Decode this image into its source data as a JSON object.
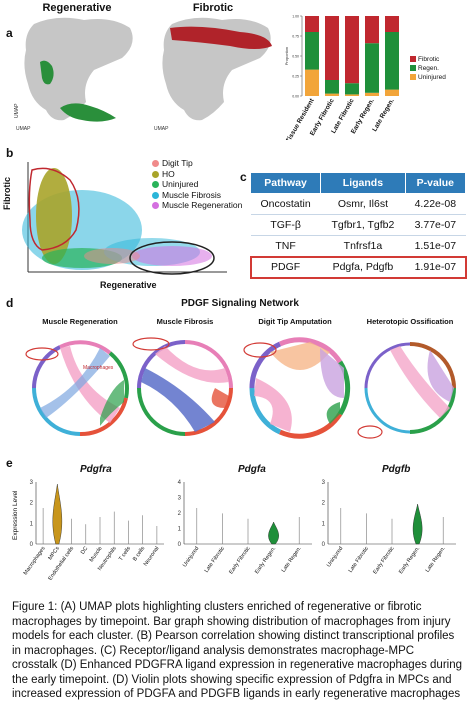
{
  "panel_labels": {
    "a": "a",
    "b": "b",
    "c": "c",
    "d": "d",
    "e": "e"
  },
  "a": {
    "umap1_title": "Regenerative",
    "umap2_title": "Fibrotic",
    "umap_x": "UMAP",
    "umap_y": "UMAP",
    "bar_ylabel": "Proportion",
    "legend": [
      "Fibrotic",
      "Regen.",
      "Uninjured"
    ],
    "colors": {
      "fibrotic": "#c0282f",
      "regen": "#1f8f3a",
      "uninjured": "#f2a53a",
      "gray": "#c8c8c8"
    }
  },
  "chart_data": [
    {
      "type": "bar",
      "stacked": true,
      "categories": [
        "Tissue Resident",
        "Early Fibrotic",
        "Late Fibrotic",
        "Early Regen.",
        "Late Regen."
      ],
      "series": [
        {
          "name": "Uninjured",
          "values": [
            0.33,
            0.03,
            0.02,
            0.04,
            0.08
          ]
        },
        {
          "name": "Regen.",
          "values": [
            0.47,
            0.17,
            0.14,
            0.62,
            0.72
          ]
        },
        {
          "name": "Fibrotic",
          "values": [
            0.2,
            0.8,
            0.84,
            0.34,
            0.2
          ]
        }
      ],
      "ylim": [
        0,
        1
      ],
      "legend_position": "right"
    }
  ],
  "b": {
    "ylabel": "Fibrotic",
    "xlabel": "Regenerative",
    "legend": [
      {
        "label": "Digit Tip",
        "color": "#f08a8a"
      },
      {
        "label": "HO",
        "color": "#a8a42a"
      },
      {
        "label": "Uninjured",
        "color": "#29b35a"
      },
      {
        "label": "Muscle Fibrosis",
        "color": "#2bb5d8"
      },
      {
        "label": "Muscle Regeneration",
        "color": "#d46fe0"
      }
    ]
  },
  "c": {
    "headers": [
      "Pathway",
      "Ligands",
      "P-value"
    ],
    "rows": [
      [
        "Oncostatin",
        "Osmr, Il6st",
        "4.22e-08"
      ],
      [
        "TGF-β",
        "Tgfbr1, Tgfb2",
        "3.77e-07"
      ],
      [
        "TNF",
        "Tnfrsf1a",
        "1.51e-07"
      ],
      [
        "PDGF",
        "Pdgfa, Pdgfb",
        "1.91e-07"
      ]
    ]
  },
  "d": {
    "title": "PDGF Signaling Network",
    "sub": [
      "Muscle Regeneration",
      "Muscle Fibrosis",
      "Digit Tip Amputation",
      "Heterotopic Ossification"
    ],
    "macrophages_label": "Macrophages"
  },
  "e": {
    "titles": [
      "Pdgfra",
      "Pdgfa",
      "Pdgfb"
    ],
    "ylabel": "Expression Level",
    "cells": [
      "Macrophages",
      "MPCs",
      "Endothelial cells",
      "DC",
      "Muscle",
      "Neutrophils",
      "T cells",
      "B cells",
      "Neuronal"
    ],
    "timepoints": [
      "Uninjured",
      "Late Fibrotic",
      "Early Fibrotic",
      "Early Regen.",
      "Late Regen."
    ],
    "yticks1": [
      "3",
      "2",
      "1",
      "0"
    ],
    "yticks2": [
      "4",
      "3",
      "2",
      "1",
      "0"
    ],
    "yticks3": [
      "3",
      "2",
      "1",
      "0"
    ]
  },
  "caption": "Figure 1: (A) UMAP plots highlighting clusters enriched of regenerative or fibrotic macrophages by timepoint. Bar graph showing distribution of macrophages from injury models for each cluster. (B) Pearson correlation showing distinct transcriptional profiles in macrophages. (C) Receptor/ligand analysis demonstrates macrophage-MPC crosstalk (D) Enhanced PDGFRA ligand expression in regenerative macrophages during the early timepoint. (D) Violin plots showing specific expression of Pdgfra in MPCs and increased expression of PDGFA and PDGFB ligands in early regenerative macrophages"
}
